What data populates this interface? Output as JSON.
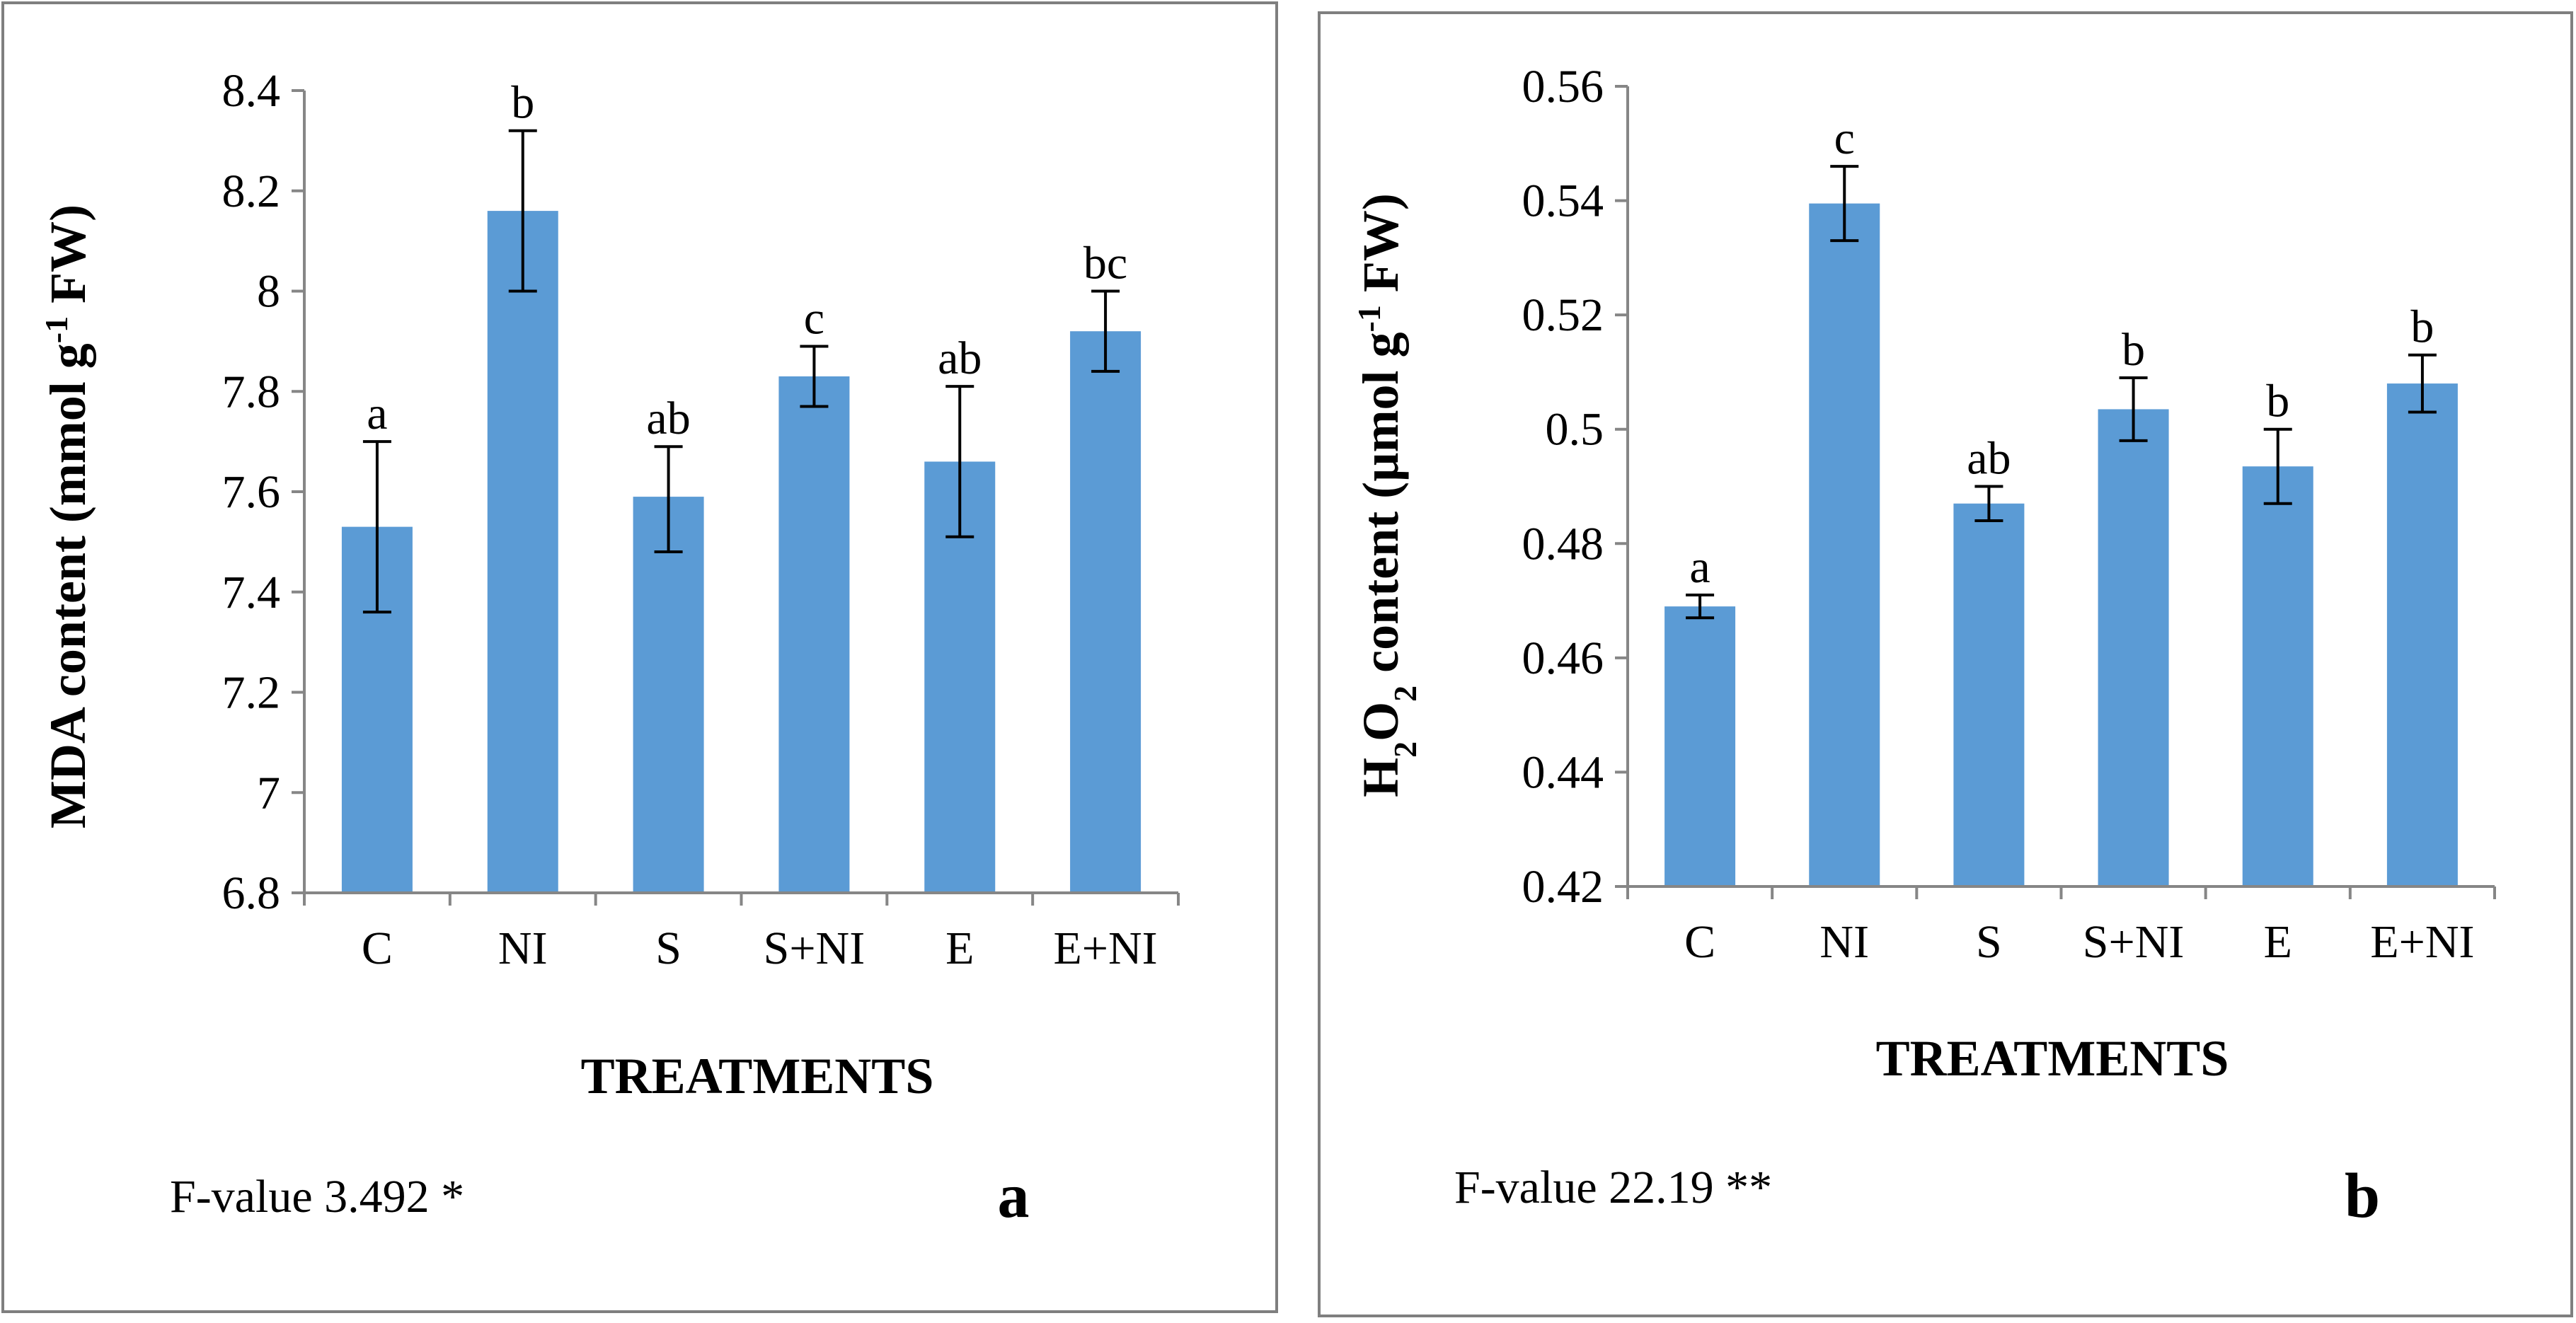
{
  "figure_labels": [
    "a",
    "b"
  ],
  "chart_data": [
    {
      "type": "bar",
      "panel_label": "a",
      "categories": [
        "C",
        "NI",
        "S",
        "S+NI",
        "E",
        "E+NI"
      ],
      "values": [
        7.53,
        8.16,
        7.59,
        7.83,
        7.66,
        7.92
      ],
      "error_low": [
        7.36,
        8.0,
        7.48,
        7.77,
        7.51,
        7.84
      ],
      "error_high": [
        7.7,
        8.32,
        7.69,
        7.89,
        7.81,
        8.0
      ],
      "letters": [
        "a",
        "b",
        "ab",
        "c",
        "ab",
        "bc"
      ],
      "xlabel": "TREATMENTS",
      "ylabel": "MDA content (mmol g-1 FW)",
      "ylabel_parts": [
        "MDA content (mmol g",
        "-1",
        " FW)"
      ],
      "ylim": [
        6.8,
        8.4
      ],
      "yticks": [
        6.8,
        7.0,
        7.2,
        7.4,
        7.6,
        7.8,
        8.0,
        8.2,
        8.4
      ],
      "ytick_labels": [
        "6.8",
        "7",
        "7.2",
        "7.4",
        "7.6",
        "7.8",
        "8",
        "8.2",
        "8.4"
      ],
      "annotation": "F-value 3.492 *",
      "bar_color": "#5b9bd5",
      "grid": false
    },
    {
      "type": "bar",
      "panel_label": "b",
      "categories": [
        "C",
        "NI",
        "S",
        "S+NI",
        "E",
        "E+NI"
      ],
      "values": [
        0.469,
        0.5395,
        0.487,
        0.5035,
        0.4935,
        0.508
      ],
      "error_low": [
        0.467,
        0.533,
        0.484,
        0.498,
        0.487,
        0.503
      ],
      "error_high": [
        0.471,
        0.546,
        0.49,
        0.509,
        0.5,
        0.513
      ],
      "letters": [
        "a",
        "c",
        "ab",
        "b",
        "b",
        "b"
      ],
      "xlabel": "TREATMENTS",
      "ylabel": "H2O2  content (µmol g-1 FW)",
      "ylabel_parts": [
        "H",
        "2",
        "O",
        "2",
        "  content (µmol g",
        "-1",
        " FW)"
      ],
      "ylim": [
        0.42,
        0.56
      ],
      "yticks": [
        0.42,
        0.44,
        0.46,
        0.48,
        0.5,
        0.52,
        0.54,
        0.56
      ],
      "ytick_labels": [
        "0.42",
        "0.44",
        "0.46",
        "0.48",
        "0.5",
        "0.52",
        "0.54",
        "0.56"
      ],
      "annotation": "F-value 22.19 **",
      "bar_color": "#5b9bd5",
      "grid": false
    }
  ]
}
